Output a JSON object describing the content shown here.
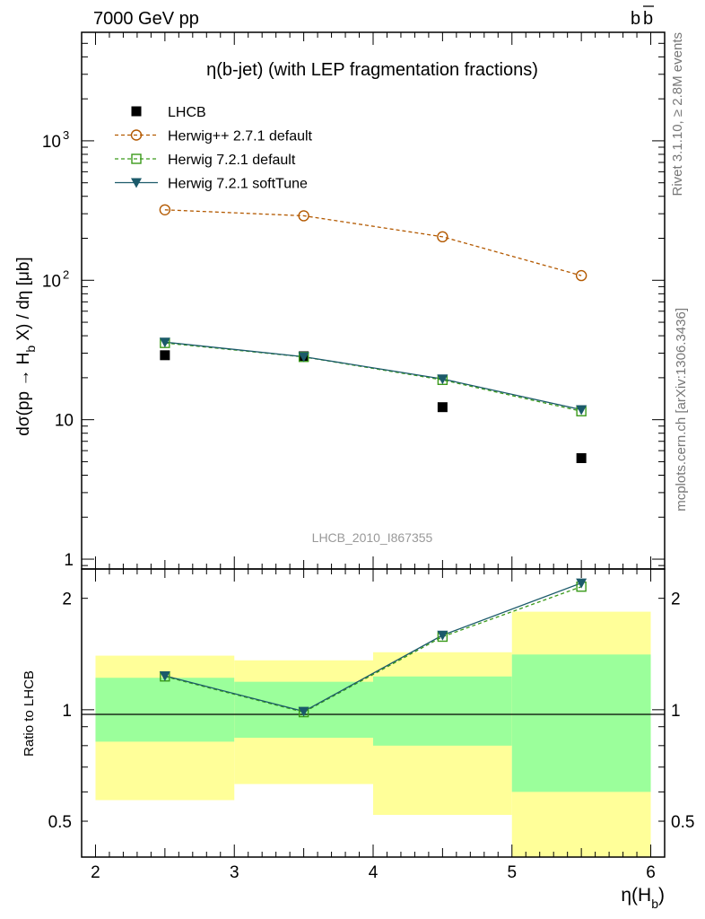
{
  "header": {
    "left": "7000 GeV pp",
    "right": "b",
    "right_bar": "b"
  },
  "side_text": {
    "rivet": "Rivet 3.1.10, ≥ 2.8M events",
    "mcplots": "mcplots.cern.ch [arXiv:1306.3436]"
  },
  "chart_data": [
    {
      "type": "scatter",
      "panel": "main",
      "title": "η(b-jet) (with LEP fragmentation fractions)",
      "analysis_label": "LHCB_2010_I867355",
      "ylabel": "dσ(pp → H_b X) / dη [μb]",
      "yscale": "log",
      "xlim": [
        1.9,
        6.1
      ],
      "ylim": [
        0.85,
        6000
      ],
      "ytick_labels": [
        {
          "value": 1,
          "label": "1"
        },
        {
          "value": 10,
          "label": "10"
        },
        {
          "value": 100,
          "label": "10",
          "exp": "2"
        },
        {
          "value": 1000,
          "label": "10",
          "exp": "3"
        }
      ],
      "legend_position": "top-left",
      "series": [
        {
          "name": "LHCB",
          "style": "data",
          "color": "#000000",
          "x": [
            2.5,
            3.5,
            4.5,
            5.5
          ],
          "values": [
            29,
            28.5,
            12.3,
            5.3
          ]
        },
        {
          "name": "Herwig++ 2.7.1 default",
          "style": "open-circle-dashed",
          "color": "#b35900",
          "x": [
            2.5,
            3.5,
            4.5,
            5.5
          ],
          "values": [
            320,
            290,
            205,
            108
          ]
        },
        {
          "name": "Herwig 7.2.1 default",
          "style": "open-square-dashed",
          "color": "#3a9a1a",
          "x": [
            2.5,
            3.5,
            4.5,
            5.5
          ],
          "values": [
            35.5,
            28.2,
            19.3,
            11.5
          ]
        },
        {
          "name": "Herwig 7.2.1 softTune",
          "style": "triangle-solid",
          "color": "#1b5a6a",
          "x": [
            2.5,
            3.5,
            4.5,
            5.5
          ],
          "values": [
            36,
            28.3,
            19.6,
            11.8
          ]
        }
      ]
    },
    {
      "type": "scatter",
      "panel": "ratio",
      "ylabel": "Ratio to LHCB",
      "xlabel": "η(H_b)",
      "yscale": "log",
      "xlim": [
        1.9,
        6.1
      ],
      "ylim": [
        0.4,
        2.4
      ],
      "ytick_labels": [
        {
          "value": 0.5,
          "label": "0.5"
        },
        {
          "value": 1,
          "label": "1"
        },
        {
          "value": 2,
          "label": "2"
        }
      ],
      "xtick_labels": [
        "2",
        "3",
        "4",
        "5",
        "6"
      ],
      "bands": [
        {
          "x": [
            2,
            3
          ],
          "inner": [
            0.82,
            1.22
          ],
          "outer": [
            0.57,
            1.4
          ]
        },
        {
          "x": [
            3,
            4
          ],
          "inner": [
            0.84,
            1.19
          ],
          "outer": [
            0.63,
            1.36
          ]
        },
        {
          "x": [
            4,
            5
          ],
          "inner": [
            0.8,
            1.23
          ],
          "outer": [
            0.52,
            1.43
          ]
        },
        {
          "x": [
            5,
            6
          ],
          "inner": [
            0.6,
            1.41
          ],
          "outer": [
            0.4,
            1.84
          ]
        }
      ],
      "band_colors": {
        "inner": "#9bff9b",
        "outer": "#ffff99"
      },
      "series": [
        {
          "name": "Herwig 7.2.1 default",
          "style": "open-square-dashed",
          "color": "#3a9a1a",
          "x": [
            2.5,
            3.5,
            4.5,
            5.5
          ],
          "values": [
            1.23,
            0.985,
            1.575,
            2.15
          ]
        },
        {
          "name": "Herwig 7.2.1 softTune",
          "style": "triangle-solid",
          "color": "#1b5a6a",
          "x": [
            2.5,
            3.5,
            4.5,
            5.5
          ],
          "values": [
            1.235,
            0.99,
            1.59,
            2.2
          ]
        }
      ]
    }
  ]
}
